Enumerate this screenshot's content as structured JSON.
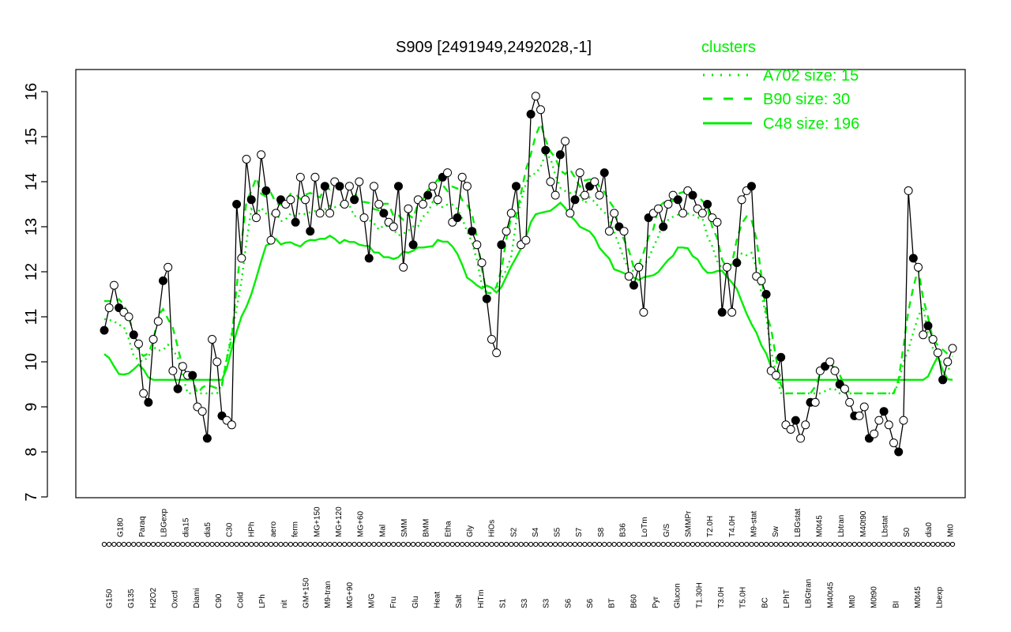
{
  "chart_data": {
    "type": "line",
    "title": "S909 [2491949,2492028,-1]",
    "ylim": [
      7,
      16
    ],
    "yticks": [
      7,
      8,
      9,
      10,
      11,
      12,
      13,
      14,
      15,
      16
    ],
    "xtick_labels": [
      "G150",
      "G180",
      "G135",
      "Paraq",
      "H2O2",
      "LBGexp",
      "Oxctl",
      "dia15",
      "Diami",
      "dia5",
      "C90",
      "C30",
      "Cold",
      "HPh",
      "LPh",
      "aero",
      "nit",
      "ferm",
      "GM+150",
      "MG+150",
      "M9-tran",
      "MG+120",
      "MG+90",
      "MG+60",
      "M/G",
      "Mal",
      "Fru",
      "SMM",
      "Glu",
      "BMM",
      "Heat",
      "Etha",
      "Salt",
      "Gly",
      "HiTm",
      "HiOs",
      "S1",
      "S2",
      "S3",
      "S4",
      "S3",
      "S5",
      "S6",
      "S7",
      "S6",
      "S8",
      "BT",
      "B36",
      "B60",
      "LoTm",
      "Pyr",
      "G/S",
      "Glucon",
      "SMMPr",
      "T1.30H",
      "T2.0H",
      "T3.0H",
      "T4.0H",
      "T5.0H",
      "M9-stat",
      "BC",
      "Sw",
      "LPhT",
      "LBGstat",
      "LBGtran",
      "M0t45",
      "M40t45",
      "Lbtran",
      "Mt0",
      "M40t90",
      "M0t90",
      "Lbstat",
      "BI",
      "S0",
      "M0t45",
      "dia0",
      "Lbexp",
      "Mt0"
    ],
    "legend": {
      "title": "clusters",
      "position": "top-right",
      "entries": [
        {
          "label": "A702 size: 15",
          "style": "dotted"
        },
        {
          "label": "B90 size: 30",
          "style": "dashed"
        },
        {
          "label": "C48 size: 196",
          "style": "solid"
        }
      ]
    },
    "colors": {
      "clusters": "#00ee00",
      "gene": "#000000"
    },
    "series": [
      {
        "values": [
          10.7,
          11.2,
          11.7,
          11.2,
          11.1,
          11.0,
          10.6,
          10.4,
          9.3,
          9.1,
          10.5,
          10.9,
          11.8,
          12.1,
          9.8,
          9.4,
          9.9,
          9.7,
          9.7,
          9.0,
          8.9,
          8.3,
          10.5,
          10.0,
          8.8,
          8.7,
          8.6,
          13.5,
          12.3,
          14.5,
          13.6,
          13.2,
          14.6,
          13.8,
          12.7,
          13.3,
          13.6,
          13.5,
          13.6,
          13.1,
          14.1,
          13.6,
          12.9,
          14.1,
          13.3,
          13.9,
          13.3,
          14.0,
          13.9,
          13.5,
          13.9,
          13.6,
          14.0,
          13.2,
          12.3,
          13.9,
          13.5,
          13.3,
          13.1,
          13.0,
          13.9,
          12.1,
          13.4,
          12.6,
          13.6,
          13.5,
          13.7,
          13.9,
          13.6,
          14.1,
          14.2,
          13.1,
          13.2,
          14.1,
          13.9,
          12.9,
          12.6,
          12.2,
          11.4,
          10.5,
          10.2,
          12.6,
          12.9,
          13.3,
          13.9,
          12.6,
          12.7,
          15.5,
          15.9,
          15.6,
          14.7,
          14.0,
          13.7,
          14.6,
          14.9,
          13.3,
          13.6,
          14.2,
          13.7,
          13.9,
          14.0,
          13.7,
          14.2,
          12.9,
          13.3,
          13.0,
          12.9,
          11.9,
          11.7,
          12.1,
          11.1,
          13.2,
          13.3,
          13.4,
          13.0,
          13.5,
          13.7,
          13.6,
          13.3,
          13.8,
          13.7,
          13.4,
          13.3,
          13.5,
          13.2,
          13.1,
          11.1,
          12.1,
          11.1,
          12.2,
          13.6,
          13.8,
          13.9,
          11.9,
          11.8,
          11.5,
          9.8,
          9.7,
          10.1,
          8.6,
          8.5,
          8.7,
          8.3,
          8.6,
          9.1,
          9.1,
          9.8,
          9.9,
          10.0,
          9.8,
          9.5,
          9.4,
          9.1,
          8.8,
          8.8,
          9.0,
          8.3,
          8.4,
          8.7,
          8.9,
          8.6,
          8.2,
          8.0,
          8.7,
          13.8,
          12.3,
          12.1,
          10.6,
          10.8,
          10.5,
          10.2,
          9.6,
          10.0,
          10.3
        ]
      }
    ]
  }
}
